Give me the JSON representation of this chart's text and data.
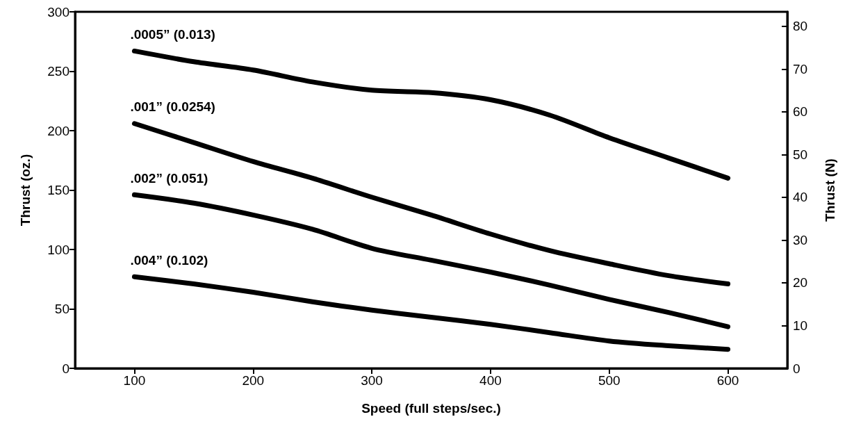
{
  "chart_data": {
    "type": "line",
    "xlabel": "Speed (full steps/sec.)",
    "ylabel": "Thrust (oz.)",
    "y2label": "Thrust (N)",
    "x": [
      100,
      150,
      200,
      250,
      300,
      350,
      400,
      450,
      500,
      550,
      600
    ],
    "series": [
      {
        "name": ".0005” (0.013)",
        "color": "#000000",
        "values": [
          267,
          258,
          251,
          241,
          234,
          232,
          226,
          213,
          194,
          177,
          160
        ]
      },
      {
        "name": ".001” (0.0254)",
        "color": "#000000",
        "values": [
          206,
          190,
          174,
          160,
          144,
          129,
          113,
          99,
          88,
          78,
          71
        ]
      },
      {
        "name": ".002” (0.051)",
        "color": "#000000",
        "values": [
          146,
          139,
          129,
          117,
          101,
          91,
          81,
          70,
          58,
          47,
          35
        ]
      },
      {
        "name": ".004” (0.102)",
        "color": "#000000",
        "values": [
          77,
          71,
          64,
          56,
          49,
          43,
          37,
          30,
          23,
          19,
          16
        ]
      }
    ],
    "xlim": [
      50,
      650
    ],
    "xticks": [
      100,
      200,
      300,
      400,
      500,
      600
    ],
    "ylim": [
      0,
      300
    ],
    "yticks": [
      0,
      50,
      100,
      150,
      200,
      250,
      300
    ],
    "y2lim": [
      0,
      83.4
    ],
    "y2ticks": [
      0,
      10,
      20,
      30,
      40,
      50,
      60,
      70,
      80
    ],
    "grid": false,
    "marker": "none",
    "line_style": "solid"
  }
}
